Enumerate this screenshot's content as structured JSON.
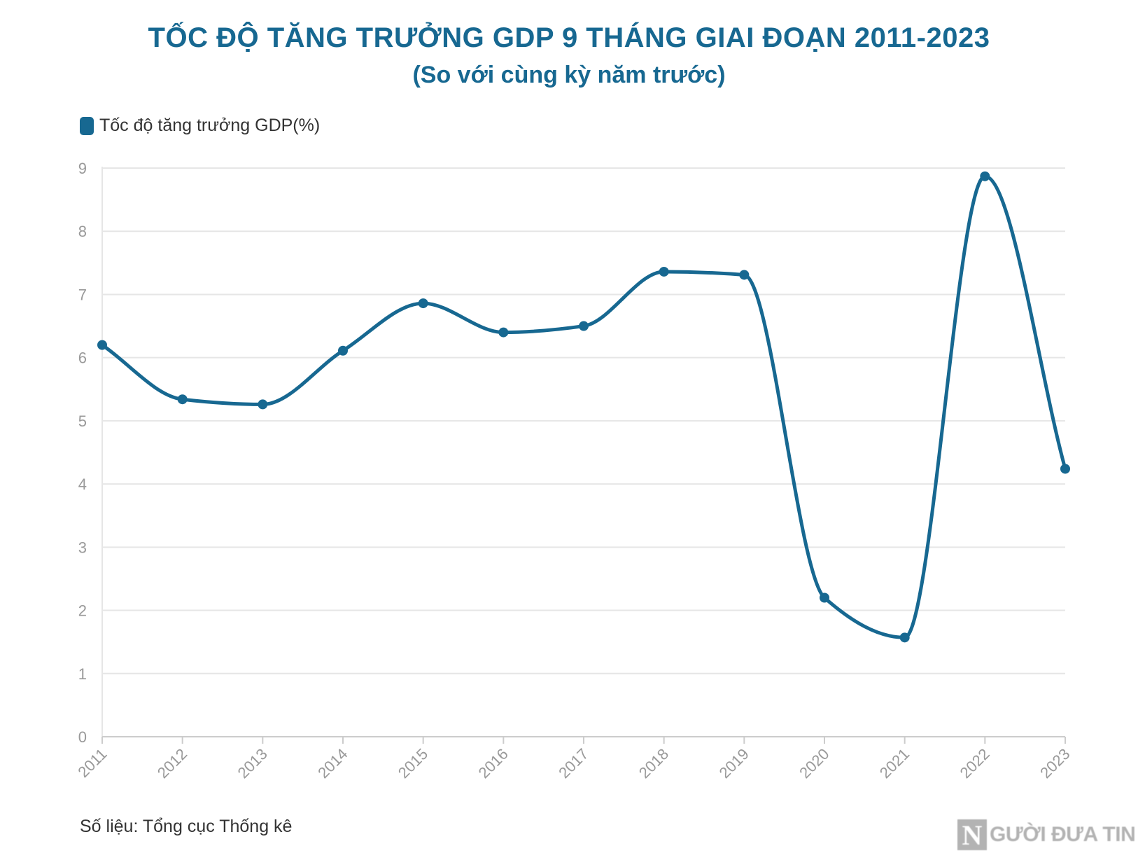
{
  "header": {
    "title": "TỐC ĐỘ TĂNG TRƯỞNG GDP 9 THÁNG GIAI ĐOẠN 2011-2023",
    "subtitle": "(So với cùng kỳ năm trước)"
  },
  "footer": {
    "source": "Số liệu: Tổng cục Thống kê",
    "logo_mark": "N",
    "logo_text": "GƯỜI ĐƯA TIN"
  },
  "colors": {
    "title": "#176891",
    "series": "#176891",
    "grid": "#e6e6e6",
    "tick_label": "#999999"
  },
  "chart_data": {
    "type": "line",
    "title": "TỐC ĐỘ TĂNG TRƯỞNG GDP 9 THÁNG GIAI ĐOẠN 2011-2023",
    "subtitle": "(So với cùng kỳ năm trước)",
    "xlabel": "",
    "ylabel": "",
    "categories": [
      "2011",
      "2012",
      "2013",
      "2014",
      "2015",
      "2016",
      "2017",
      "2018",
      "2019",
      "2020",
      "2021",
      "2022",
      "2023"
    ],
    "series": [
      {
        "name": "Tốc độ tăng trưởng GDP(%)",
        "values": [
          6.2,
          5.34,
          5.26,
          6.11,
          6.86,
          6.4,
          6.5,
          7.36,
          7.31,
          2.2,
          1.57,
          8.87,
          4.24
        ]
      }
    ],
    "ylim": [
      0,
      9
    ],
    "yticks": [
      0,
      1,
      2,
      3,
      4,
      5,
      6,
      7,
      8,
      9
    ],
    "smooth": true,
    "markers": true,
    "grid": true,
    "legend_position": "top-left"
  }
}
